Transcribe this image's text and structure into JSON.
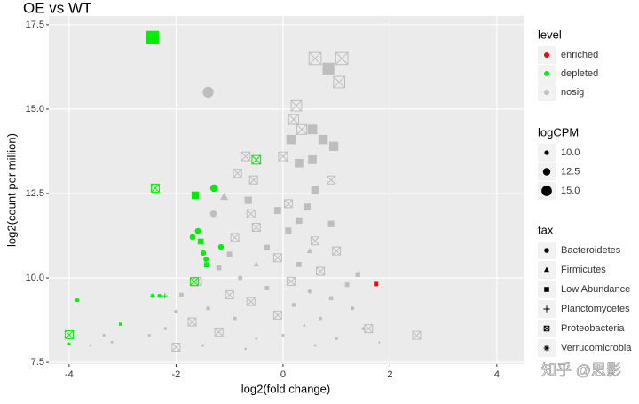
{
  "chart_data": {
    "type": "scatter",
    "title": "OE vs WT",
    "x_label": "log2(fold change)",
    "y_label": "log2(count per million)",
    "xlim": [
      -4.38,
      4.5
    ],
    "ylim": [
      7.45,
      17.76
    ],
    "xticks": [
      -4,
      -2,
      0,
      2,
      4
    ],
    "yticks": [
      7.5,
      {
        "value": 10,
        "label": "10.0"
      },
      12.5,
      {
        "value": 15,
        "label": "15.0"
      },
      17.5
    ],
    "grid": true,
    "color_legend_title": "level",
    "size_legend_title": "logCPM",
    "size_legend": [
      {
        "value": 10,
        "label": "10.0"
      },
      12.5,
      {
        "value": 15,
        "label": "15.0"
      }
    ],
    "shape_legend_title": "tax",
    "tax": [
      "Bacteroidetes",
      "Firmicutes",
      "Low Abundance",
      "Planctomycetes",
      "Proteobacteria",
      "Verrucomicrobia"
    ],
    "watermark": "知乎 @思影",
    "series": [
      {
        "name": "enriched",
        "color": "#ff0000",
        "x": [
          1.74
        ],
        "values": [
          9.82
        ],
        "size": [
          9.82
        ],
        "tax": [
          2
        ]
      },
      {
        "name": "depleted",
        "color": "#00ee00",
        "x": [
          -2.44,
          -2.39,
          -1.64,
          -1.29,
          -0.5,
          -1.59,
          -1.69,
          -1.54,
          -1.49,
          -1.44,
          -1.43,
          -1.16,
          -1.66,
          -3.85,
          -2.44,
          -2.31,
          -2.21,
          -3.04,
          -4.0,
          -4.0
        ],
        "values": [
          17.13,
          12.66,
          12.45,
          12.66,
          13.5,
          11.39,
          11.21,
          11.08,
          10.74,
          10.55,
          10.39,
          10.92,
          9.89,
          9.34,
          9.47,
          9.47,
          9.47,
          8.63,
          8.32,
          8.05
        ],
        "size": [
          17.13,
          12.66,
          12.45,
          12.66,
          13.5,
          11.39,
          11.21,
          11.08,
          10.74,
          10.55,
          10.39,
          10.92,
          9.89,
          9.34,
          9.47,
          9.47,
          9.47,
          8.63,
          8.32,
          8.05
        ],
        "tax": [
          2,
          4,
          2,
          0,
          4,
          0,
          0,
          2,
          0,
          0,
          2,
          0,
          4,
          0,
          5,
          0,
          3,
          2,
          4,
          5
        ]
      },
      {
        "name": "nosig",
        "color": "#bebebe",
        "x": [
          0.6,
          1.1,
          0.85,
          1.05,
          -1.4,
          0.25,
          0.2,
          0.35,
          0.55,
          0.15,
          0.75,
          0.95,
          0.0,
          0.55,
          0.3,
          -0.7,
          -0.85,
          -0.55,
          0.9,
          0.6,
          -0.65,
          -1.1,
          0.1,
          -0.1,
          0.45,
          -1.3,
          -0.6,
          0.3,
          0.9,
          -0.5,
          0.1,
          -0.9,
          0.6,
          -0.3,
          0.5,
          1.0,
          -1.0,
          -0.1,
          -0.5,
          0.3,
          -1.2,
          0.7,
          1.4,
          -0.8,
          0.15,
          -1.6,
          1.2,
          -0.3,
          0.5,
          -1.0,
          -1.9,
          0.9,
          -0.6,
          0.2,
          -1.4,
          1.3,
          -2.0,
          -0.1,
          0.7,
          -0.9,
          -1.7,
          0.4,
          1.6,
          -2.2,
          -1.2,
          0.0,
          1.0,
          -0.5,
          -2.5,
          1.8,
          -1.5,
          0.6,
          -2.0,
          -3.2,
          -3.6,
          -3.35,
          2.5,
          1.5,
          -0.7
        ],
        "values": [
          16.5,
          16.5,
          16.2,
          15.8,
          15.5,
          15.1,
          14.7,
          14.4,
          14.4,
          14.1,
          14.1,
          13.9,
          13.6,
          13.5,
          13.4,
          13.6,
          13.1,
          12.9,
          12.9,
          12.6,
          12.3,
          12.4,
          12.2,
          12.0,
          12.1,
          11.9,
          11.9,
          11.7,
          11.6,
          11.5,
          11.4,
          11.2,
          11.1,
          10.9,
          10.8,
          10.8,
          10.7,
          10.6,
          10.4,
          10.4,
          10.3,
          10.2,
          10.1,
          10.0,
          9.9,
          9.9,
          9.8,
          9.7,
          9.6,
          9.5,
          9.5,
          9.4,
          9.3,
          9.2,
          9.1,
          9.1,
          9.0,
          8.9,
          8.8,
          8.8,
          8.7,
          8.6,
          8.5,
          8.5,
          8.4,
          8.3,
          8.2,
          8.2,
          8.3,
          8.1,
          8.0,
          8.0,
          7.95,
          8.1,
          8.0,
          8.3,
          8.3,
          8.5,
          7.9
        ],
        "size": [
          16.5,
          16.5,
          16.2,
          15.8,
          15.5,
          15.1,
          14.7,
          14.4,
          14.4,
          14.1,
          14.1,
          13.9,
          13.6,
          13.5,
          13.4,
          13.6,
          13.1,
          12.9,
          12.9,
          12.6,
          12.3,
          12.4,
          12.2,
          12.0,
          12.1,
          11.9,
          11.9,
          11.7,
          11.6,
          11.5,
          11.4,
          11.2,
          11.1,
          10.9,
          10.8,
          10.8,
          10.7,
          10.6,
          10.4,
          10.4,
          10.3,
          10.2,
          10.1,
          10.0,
          9.9,
          9.9,
          9.8,
          9.7,
          9.6,
          9.5,
          9.5,
          9.4,
          9.3,
          9.2,
          9.1,
          9.1,
          9.0,
          8.9,
          8.8,
          8.8,
          8.7,
          8.6,
          8.5,
          8.5,
          8.4,
          8.3,
          8.2,
          8.2,
          8.3,
          8.1,
          8.0,
          8.0,
          7.95,
          8.1,
          8.0,
          8.3,
          8.3,
          8.5,
          7.9
        ],
        "tax": [
          4,
          4,
          2,
          4,
          0,
          4,
          4,
          4,
          2,
          2,
          2,
          2,
          4,
          2,
          2,
          4,
          4,
          4,
          4,
          2,
          2,
          1,
          4,
          2,
          2,
          0,
          4,
          2,
          2,
          4,
          2,
          4,
          4,
          2,
          1,
          4,
          2,
          4,
          1,
          2,
          2,
          4,
          2,
          0,
          4,
          4,
          2,
          2,
          0,
          4,
          2,
          2,
          4,
          2,
          2,
          0,
          2,
          4,
          2,
          2,
          4,
          1,
          4,
          2,
          4,
          2,
          2,
          0,
          2,
          1,
          2,
          2,
          4,
          2,
          0,
          2,
          4,
          2,
          2
        ]
      }
    ]
  }
}
